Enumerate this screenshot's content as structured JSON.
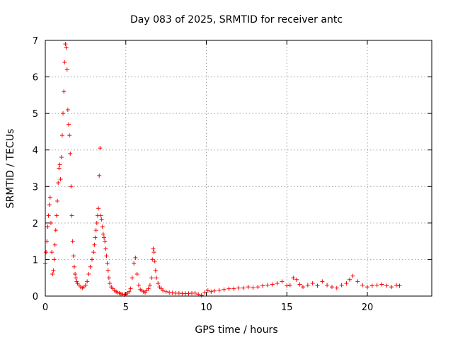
{
  "chart_data": {
    "type": "scatter",
    "title": "Day 083 of 2025, SRMTID for receiver antc",
    "xlabel": "GPS time / hours",
    "ylabel": "SRMTID / TECUs",
    "xlim": [
      0,
      24
    ],
    "ylim": [
      0,
      7
    ],
    "xticks": [
      0,
      5,
      10,
      15,
      20
    ],
    "yticks": [
      0,
      1,
      2,
      3,
      4,
      5,
      6,
      7
    ],
    "xtick_labels": [
      "0",
      "5",
      "10",
      "15",
      "20"
    ],
    "ytick_labels": [
      "0",
      "1",
      "2",
      "3",
      "4",
      "5",
      "6",
      "7"
    ],
    "grid": true,
    "marker": "plus",
    "color": "#ff0000",
    "series": [
      {
        "name": "antc",
        "x": [
          0.0,
          0.05,
          0.1,
          0.15,
          0.2,
          0.25,
          0.3,
          0.35,
          0.4,
          0.45,
          0.5,
          0.55,
          0.6,
          0.65,
          0.7,
          0.75,
          0.8,
          0.85,
          0.9,
          0.95,
          1.0,
          1.05,
          1.1,
          1.15,
          1.2,
          1.25,
          1.3,
          1.35,
          1.4,
          1.45,
          1.5,
          1.55,
          1.6,
          1.65,
          1.7,
          1.75,
          1.8,
          1.85,
          1.9,
          1.95,
          2.0,
          2.1,
          2.2,
          2.3,
          2.4,
          2.5,
          2.6,
          2.7,
          2.8,
          2.9,
          3.0,
          3.05,
          3.1,
          3.15,
          3.2,
          3.25,
          3.3,
          3.35,
          3.4,
          3.45,
          3.5,
          3.55,
          3.6,
          3.65,
          3.7,
          3.75,
          3.8,
          3.85,
          3.9,
          3.95,
          4.0,
          4.1,
          4.2,
          4.3,
          4.4,
          4.5,
          4.6,
          4.7,
          4.8,
          4.9,
          5.0,
          5.1,
          5.2,
          5.3,
          5.4,
          5.5,
          5.6,
          5.7,
          5.8,
          5.9,
          6.0,
          6.1,
          6.2,
          6.3,
          6.4,
          6.5,
          6.6,
          6.65,
          6.7,
          6.75,
          6.8,
          6.85,
          6.9,
          7.0,
          7.1,
          7.2,
          7.3,
          7.5,
          7.7,
          7.9,
          8.1,
          8.3,
          8.5,
          8.7,
          8.9,
          9.1,
          9.3,
          9.5,
          9.7,
          9.9,
          10.1,
          10.3,
          10.5,
          10.8,
          11.1,
          11.4,
          11.7,
          12.0,
          12.3,
          12.6,
          12.9,
          13.2,
          13.5,
          13.8,
          14.1,
          14.4,
          14.7,
          15.0,
          15.2,
          15.4,
          15.6,
          15.8,
          16.0,
          16.3,
          16.6,
          16.9,
          17.2,
          17.5,
          17.8,
          18.1,
          18.4,
          18.7,
          18.9,
          19.1,
          19.4,
          19.7,
          20.0,
          20.3,
          20.6,
          20.9,
          21.2,
          21.5,
          21.8,
          22.0
        ],
        "y": [
          0.9,
          1.2,
          1.5,
          1.9,
          2.2,
          2.5,
          2.7,
          2.0,
          1.2,
          0.6,
          0.7,
          1.0,
          1.4,
          1.8,
          2.2,
          2.6,
          3.1,
          3.5,
          3.6,
          3.2,
          3.8,
          4.4,
          5.0,
          5.6,
          6.4,
          6.9,
          6.8,
          6.2,
          5.1,
          4.7,
          4.4,
          3.9,
          3.0,
          2.2,
          1.5,
          1.1,
          0.8,
          0.6,
          0.5,
          0.4,
          0.35,
          0.3,
          0.25,
          0.22,
          0.25,
          0.3,
          0.4,
          0.6,
          0.8,
          1.0,
          1.2,
          1.4,
          1.6,
          1.8,
          2.0,
          2.2,
          2.4,
          3.3,
          4.05,
          2.2,
          2.1,
          1.9,
          1.7,
          1.6,
          1.5,
          1.3,
          1.1,
          0.9,
          0.7,
          0.5,
          0.35,
          0.25,
          0.2,
          0.15,
          0.12,
          0.1,
          0.08,
          0.06,
          0.05,
          0.04,
          0.05,
          0.08,
          0.12,
          0.2,
          0.5,
          0.9,
          1.05,
          0.6,
          0.3,
          0.18,
          0.15,
          0.12,
          0.1,
          0.15,
          0.2,
          0.3,
          0.5,
          1.0,
          1.3,
          1.2,
          0.95,
          0.7,
          0.5,
          0.35,
          0.25,
          0.2,
          0.15,
          0.12,
          0.1,
          0.09,
          0.08,
          0.08,
          0.07,
          0.07,
          0.07,
          0.08,
          0.08,
          0.05,
          0.02,
          0.1,
          0.15,
          0.12,
          0.14,
          0.16,
          0.18,
          0.2,
          0.2,
          0.22,
          0.22,
          0.25,
          0.23,
          0.25,
          0.28,
          0.3,
          0.32,
          0.35,
          0.4,
          0.28,
          0.3,
          0.5,
          0.45,
          0.32,
          0.25,
          0.3,
          0.35,
          0.28,
          0.4,
          0.3,
          0.25,
          0.22,
          0.3,
          0.35,
          0.45,
          0.55,
          0.4,
          0.3,
          0.25,
          0.28,
          0.3,
          0.32,
          0.28,
          0.25,
          0.3,
          0.28
        ]
      }
    ]
  }
}
